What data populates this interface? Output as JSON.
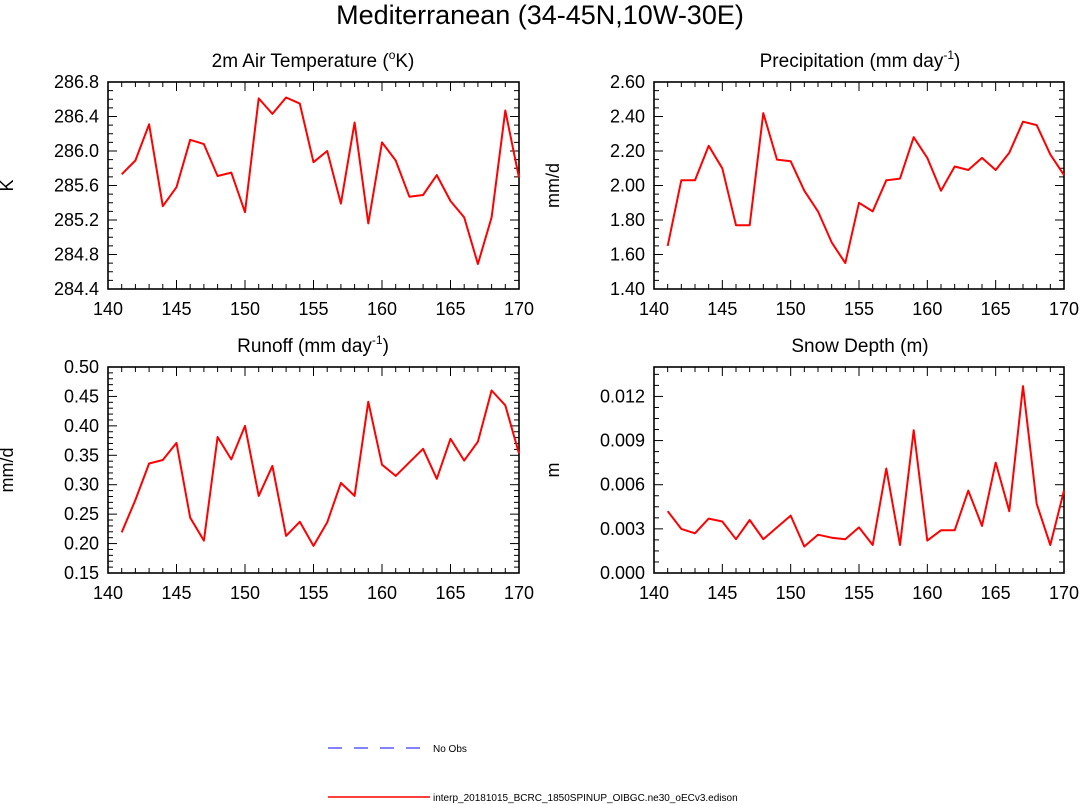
{
  "title": "Mediterranean (34-45N,10W-30E)",
  "colors": {
    "series": "#ff0000",
    "obs": "#5a5aff",
    "axis": "#000000"
  },
  "legend": {
    "entries": [
      {
        "label": "No Obs",
        "style": "dashed",
        "color": "#5a5aff"
      },
      {
        "label": "interp_20181015_BCRC_1850SPINUP_OIBGC.ne30_oECv3.edison",
        "style": "solid",
        "color": "#ff0000"
      }
    ]
  },
  "chart_data": [
    {
      "type": "line",
      "title_main": "2m Air Temperature (",
      "title_sup": "o",
      "title_after": "K)",
      "ylabel": "K",
      "xlim": [
        140,
        170
      ],
      "ylim": [
        284.4,
        286.8
      ],
      "xticks": [
        140,
        145,
        150,
        155,
        160,
        165,
        170
      ],
      "yticks": [
        "284.4",
        "284.8",
        "285.2",
        "285.6",
        "286.0",
        "286.4",
        "286.8"
      ],
      "series": [
        {
          "name": "interp_20181015_BCRC_1850SPINUP_OIBGC.ne30_oECv3.edison",
          "x": [
            141,
            142,
            143,
            144,
            145,
            146,
            147,
            148,
            149,
            150,
            151,
            152,
            153,
            154,
            155,
            156,
            157,
            158,
            159,
            160,
            161,
            162,
            163,
            164,
            165,
            166,
            167,
            168,
            169,
            170
          ],
          "values": [
            285.73,
            285.89,
            286.31,
            285.36,
            285.58,
            286.13,
            286.08,
            285.71,
            285.75,
            285.29,
            286.61,
            286.43,
            286.62,
            286.55,
            285.87,
            286.0,
            285.39,
            286.33,
            285.16,
            286.1,
            285.89,
            285.47,
            285.49,
            285.72,
            285.42,
            285.23,
            284.69,
            285.23,
            286.47,
            285.69
          ]
        }
      ]
    },
    {
      "type": "line",
      "title_main": "Precipitation (mm day",
      "title_sup": "-1",
      "title_after": ")",
      "ylabel": "mm/d",
      "xlim": [
        140,
        170
      ],
      "ylim": [
        1.4,
        2.6
      ],
      "xticks": [
        140,
        145,
        150,
        155,
        160,
        165,
        170
      ],
      "yticks": [
        "1.40",
        "1.60",
        "1.80",
        "2.00",
        "2.20",
        "2.40",
        "2.60"
      ],
      "series": [
        {
          "name": "interp_20181015_BCRC_1850SPINUP_OIBGC.ne30_oECv3.edison",
          "x": [
            141,
            142,
            143,
            144,
            145,
            146,
            147,
            148,
            149,
            150,
            151,
            152,
            153,
            154,
            155,
            156,
            157,
            158,
            159,
            160,
            161,
            162,
            163,
            164,
            165,
            166,
            167,
            168,
            169,
            170
          ],
          "values": [
            1.65,
            2.03,
            2.03,
            2.23,
            2.1,
            1.77,
            1.77,
            2.42,
            2.15,
            2.14,
            1.97,
            1.85,
            1.67,
            1.55,
            1.9,
            1.85,
            2.03,
            2.04,
            2.28,
            2.16,
            1.97,
            2.11,
            2.09,
            2.16,
            2.09,
            2.19,
            2.37,
            2.35,
            2.18,
            2.06
          ]
        }
      ]
    },
    {
      "type": "line",
      "title_main": "Runoff (mm day",
      "title_sup": "-1",
      "title_after": ")",
      "ylabel": "mm/d",
      "xlim": [
        140,
        170
      ],
      "ylim": [
        0.15,
        0.5
      ],
      "xticks": [
        140,
        145,
        150,
        155,
        160,
        165,
        170
      ],
      "yticks": [
        "0.15",
        "0.20",
        "0.25",
        "0.30",
        "0.35",
        "0.40",
        "0.45",
        "0.50"
      ],
      "series": [
        {
          "name": "interp_20181015_BCRC_1850SPINUP_OIBGC.ne30_oECv3.edison",
          "x": [
            141,
            142,
            143,
            144,
            145,
            146,
            147,
            148,
            149,
            150,
            151,
            152,
            153,
            154,
            155,
            156,
            157,
            158,
            159,
            160,
            161,
            162,
            163,
            164,
            165,
            166,
            167,
            168,
            169,
            170
          ],
          "values": [
            0.219,
            0.274,
            0.336,
            0.342,
            0.371,
            0.244,
            0.205,
            0.381,
            0.343,
            0.4,
            0.281,
            0.332,
            0.213,
            0.237,
            0.196,
            0.236,
            0.303,
            0.281,
            0.441,
            0.334,
            0.315,
            0.338,
            0.361,
            0.31,
            0.378,
            0.341,
            0.373,
            0.46,
            0.435,
            0.353
          ]
        }
      ]
    },
    {
      "type": "line",
      "title_main": "Snow Depth (m)",
      "title_sup": "",
      "title_after": "",
      "ylabel": "m",
      "xlim": [
        140,
        170
      ],
      "ylim": [
        0,
        0.014
      ],
      "xticks": [
        140,
        145,
        150,
        155,
        160,
        165,
        170
      ],
      "yticks": [
        "0.000",
        "0.003",
        "0.006",
        "0.009",
        "0.012"
      ],
      "series": [
        {
          "name": "interp_20181015_BCRC_1850SPINUP_OIBGC.ne30_oECv3.edison",
          "x": [
            141,
            142,
            143,
            144,
            145,
            146,
            147,
            148,
            149,
            150,
            151,
            152,
            153,
            154,
            155,
            156,
            157,
            158,
            159,
            160,
            161,
            162,
            163,
            164,
            165,
            166,
            167,
            168,
            169,
            170
          ],
          "values": [
            0.0042,
            0.003,
            0.0027,
            0.0037,
            0.0035,
            0.0023,
            0.0036,
            0.0023,
            0.0031,
            0.0039,
            0.0018,
            0.0026,
            0.0024,
            0.0023,
            0.0031,
            0.0019,
            0.0071,
            0.0019,
            0.0097,
            0.0022,
            0.0029,
            0.0029,
            0.0056,
            0.0032,
            0.0075,
            0.0042,
            0.0127,
            0.0047,
            0.0019,
            0.0056
          ]
        }
      ]
    }
  ]
}
